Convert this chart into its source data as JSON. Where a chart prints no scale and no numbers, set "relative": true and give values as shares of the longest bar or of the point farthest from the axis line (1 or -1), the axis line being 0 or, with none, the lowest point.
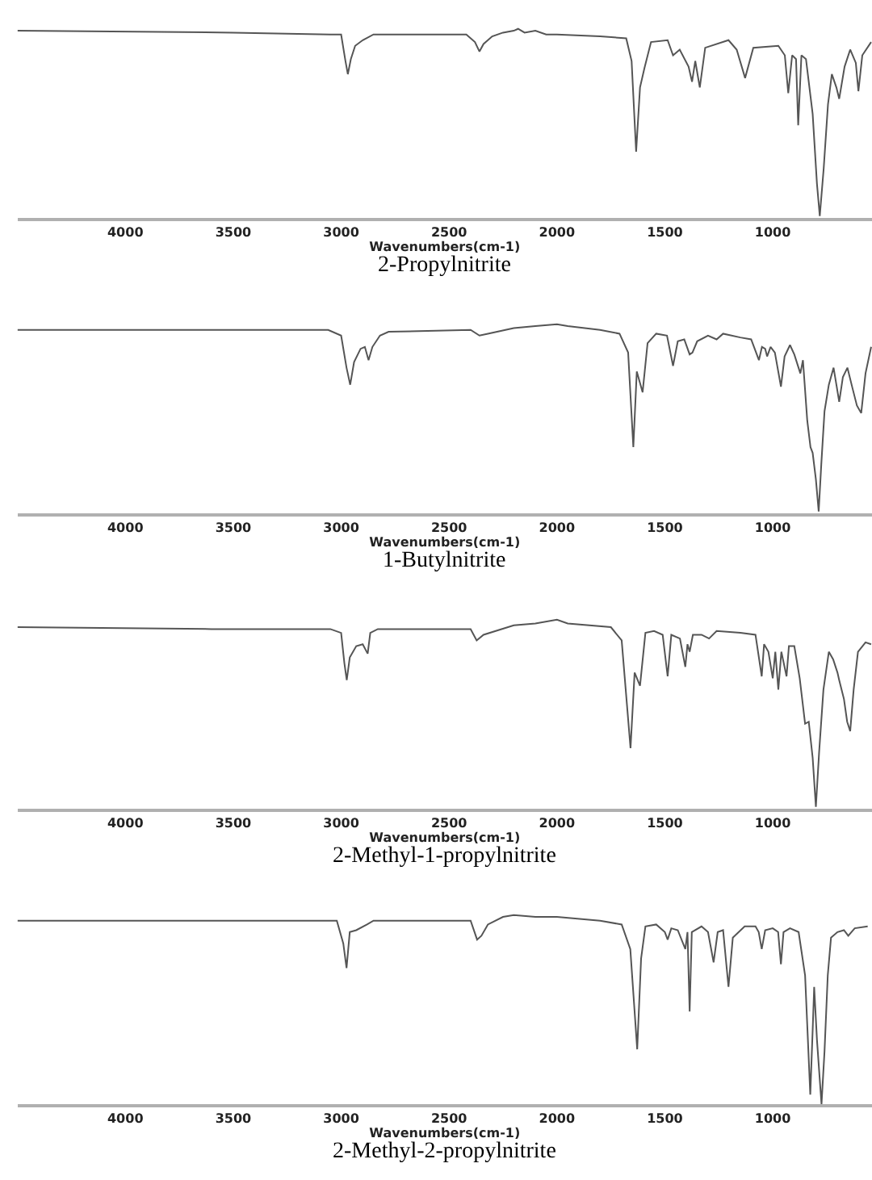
{
  "chart_data": [
    {
      "type": "line",
      "title": "2-Propylnitrite",
      "xlabel": "Wavenumbers(cm-1)",
      "relative": true,
      "tick_labels": "x",
      "xlim": [
        4500,
        540
      ],
      "xticks": [
        4000,
        3500,
        3000,
        2500,
        2000,
        1500,
        1000
      ],
      "x": [
        4500,
        3500,
        3050,
        3000,
        2980,
        2969,
        2955,
        2935,
        2900,
        2850,
        2420,
        2380,
        2359,
        2340,
        2300,
        2250,
        2200,
        2180,
        2150,
        2100,
        2050,
        2000,
        1800,
        1679,
        1654,
        1633,
        1615,
        1595,
        1564,
        1487,
        1462,
        1431,
        1390,
        1374,
        1359,
        1338,
        1313,
        1205,
        1167,
        1128,
        1090,
        974,
        944,
        928,
        910,
        892,
        882,
        867,
        846,
        815,
        795,
        782,
        764,
        744,
        726,
        705,
        692,
        667,
        641,
        615,
        603,
        585,
        544
      ],
      "series": [
        {
          "color": "#555555",
          "values": [
            0.99,
            0.98,
            0.97,
            0.97,
            0.83,
            0.76,
            0.84,
            0.91,
            0.94,
            0.97,
            0.97,
            0.93,
            0.88,
            0.92,
            0.96,
            0.98,
            0.99,
            1.0,
            0.98,
            0.99,
            0.97,
            0.97,
            0.96,
            0.95,
            0.83,
            0.35,
            0.69,
            0.79,
            0.93,
            0.94,
            0.86,
            0.89,
            0.8,
            0.72,
            0.83,
            0.69,
            0.9,
            0.94,
            0.89,
            0.74,
            0.9,
            0.91,
            0.86,
            0.66,
            0.86,
            0.84,
            0.49,
            0.86,
            0.84,
            0.55,
            0.18,
            0.01,
            0.26,
            0.6,
            0.76,
            0.69,
            0.63,
            0.8,
            0.89,
            0.82,
            0.67,
            0.86,
            0.93
          ]
        }
      ]
    },
    {
      "type": "line",
      "title": "1-Butylnitrite",
      "xlabel": "Wavenumbers(cm-1)",
      "relative": true,
      "tick_labels": "x",
      "xlim": [
        4500,
        540
      ],
      "xticks": [
        4000,
        3500,
        3000,
        2500,
        2000,
        1500,
        1000
      ],
      "x": [
        4500,
        3300,
        3060,
        3000,
        2975,
        2958,
        2940,
        2910,
        2890,
        2873,
        2855,
        2820,
        2780,
        2400,
        2359,
        2320,
        2200,
        2100,
        2000,
        1950,
        1800,
        1710,
        1670,
        1646,
        1630,
        1603,
        1580,
        1540,
        1490,
        1462,
        1440,
        1410,
        1385,
        1372,
        1350,
        1300,
        1260,
        1230,
        1150,
        1100,
        1064,
        1050,
        1035,
        1026,
        1010,
        990,
        962,
        945,
        920,
        900,
        872,
        860,
        840,
        825,
        815,
        800,
        787,
        775,
        760,
        740,
        718,
        705,
        692,
        675,
        654,
        630,
        610,
        590,
        570,
        544
      ],
      "series": [
        {
          "color": "#555555",
          "values": [
            0.97,
            0.97,
            0.97,
            0.94,
            0.77,
            0.68,
            0.8,
            0.87,
            0.88,
            0.81,
            0.88,
            0.94,
            0.96,
            0.97,
            0.94,
            0.95,
            0.98,
            0.99,
            1.0,
            0.99,
            0.97,
            0.95,
            0.85,
            0.35,
            0.75,
            0.64,
            0.9,
            0.95,
            0.94,
            0.78,
            0.91,
            0.92,
            0.84,
            0.85,
            0.91,
            0.94,
            0.92,
            0.95,
            0.93,
            0.92,
            0.81,
            0.88,
            0.87,
            0.83,
            0.88,
            0.85,
            0.67,
            0.83,
            0.89,
            0.84,
            0.74,
            0.81,
            0.49,
            0.35,
            0.32,
            0.18,
            0.01,
            0.26,
            0.54,
            0.68,
            0.77,
            0.68,
            0.59,
            0.72,
            0.77,
            0.66,
            0.57,
            0.53,
            0.74,
            0.88
          ]
        }
      ]
    },
    {
      "type": "line",
      "title": "2-Methyl-1-propylnitrite",
      "xlabel": "Wavenumbers(cm-1)",
      "relative": true,
      "tick_labels": "x",
      "xlim": [
        4500,
        540
      ],
      "xticks": [
        4000,
        3500,
        3000,
        2500,
        2000,
        1500,
        1000
      ],
      "x": [
        4500,
        3600,
        3050,
        3000,
        2985,
        2974,
        2960,
        2930,
        2900,
        2877,
        2865,
        2830,
        2400,
        2372,
        2340,
        2200,
        2100,
        2000,
        1950,
        1750,
        1700,
        1659,
        1640,
        1615,
        1590,
        1550,
        1510,
        1487,
        1470,
        1430,
        1405,
        1395,
        1385,
        1370,
        1330,
        1295,
        1260,
        1150,
        1080,
        1051,
        1040,
        1020,
        1000,
        988,
        974,
        960,
        936,
        925,
        900,
        875,
        850,
        833,
        815,
        800,
        785,
        765,
        740,
        720,
        700,
        692,
        670,
        655,
        641,
        625,
        605,
        570,
        544
      ],
      "series": [
        {
          "color": "#555555",
          "values": [
            0.96,
            0.95,
            0.95,
            0.93,
            0.77,
            0.68,
            0.8,
            0.86,
            0.87,
            0.82,
            0.93,
            0.95,
            0.95,
            0.89,
            0.92,
            0.97,
            0.98,
            1.0,
            0.98,
            0.96,
            0.89,
            0.32,
            0.72,
            0.65,
            0.93,
            0.94,
            0.92,
            0.7,
            0.92,
            0.9,
            0.75,
            0.87,
            0.83,
            0.92,
            0.92,
            0.9,
            0.94,
            0.93,
            0.92,
            0.7,
            0.87,
            0.83,
            0.69,
            0.83,
            0.63,
            0.83,
            0.7,
            0.86,
            0.86,
            0.69,
            0.45,
            0.46,
            0.27,
            0.01,
            0.3,
            0.63,
            0.83,
            0.79,
            0.72,
            0.68,
            0.58,
            0.46,
            0.41,
            0.63,
            0.83,
            0.88,
            0.87
          ]
        }
      ]
    },
    {
      "type": "line",
      "title": "2-Methyl-2-propylnitrite",
      "xlabel": "Wavenumbers(cm-1)",
      "relative": true,
      "tick_labels": "x",
      "xlim": [
        4500,
        540
      ],
      "xticks": [
        4000,
        3500,
        3000,
        2500,
        2000,
        1500,
        1000
      ],
      "x": [
        4500,
        3800,
        3200,
        3020,
        2990,
        2975,
        2960,
        2930,
        2880,
        2850,
        2400,
        2370,
        2350,
        2320,
        2250,
        2200,
        2100,
        2000,
        1800,
        1700,
        1660,
        1628,
        1610,
        1590,
        1540,
        1500,
        1487,
        1470,
        1440,
        1405,
        1395,
        1385,
        1375,
        1330,
        1300,
        1274,
        1255,
        1230,
        1205,
        1185,
        1130,
        1080,
        1065,
        1051,
        1035,
        1000,
        975,
        962,
        950,
        920,
        880,
        850,
        826,
        815,
        808,
        795,
        774,
        760,
        745,
        730,
        700,
        670,
        650,
        620,
        560
      ],
      "series": [
        {
          "color": "#555555",
          "values": [
            0.97,
            0.97,
            0.97,
            0.97,
            0.85,
            0.72,
            0.91,
            0.92,
            0.95,
            0.97,
            0.97,
            0.87,
            0.89,
            0.95,
            0.99,
            1.0,
            0.99,
            0.99,
            0.97,
            0.95,
            0.82,
            0.29,
            0.77,
            0.94,
            0.95,
            0.91,
            0.87,
            0.93,
            0.92,
            0.82,
            0.91,
            0.49,
            0.91,
            0.94,
            0.91,
            0.75,
            0.91,
            0.92,
            0.62,
            0.88,
            0.94,
            0.94,
            0.91,
            0.82,
            0.92,
            0.93,
            0.91,
            0.74,
            0.91,
            0.93,
            0.91,
            0.68,
            0.05,
            0.39,
            0.62,
            0.34,
            0.0,
            0.28,
            0.68,
            0.88,
            0.91,
            0.92,
            0.89,
            0.93,
            0.94
          ]
        }
      ]
    }
  ]
}
